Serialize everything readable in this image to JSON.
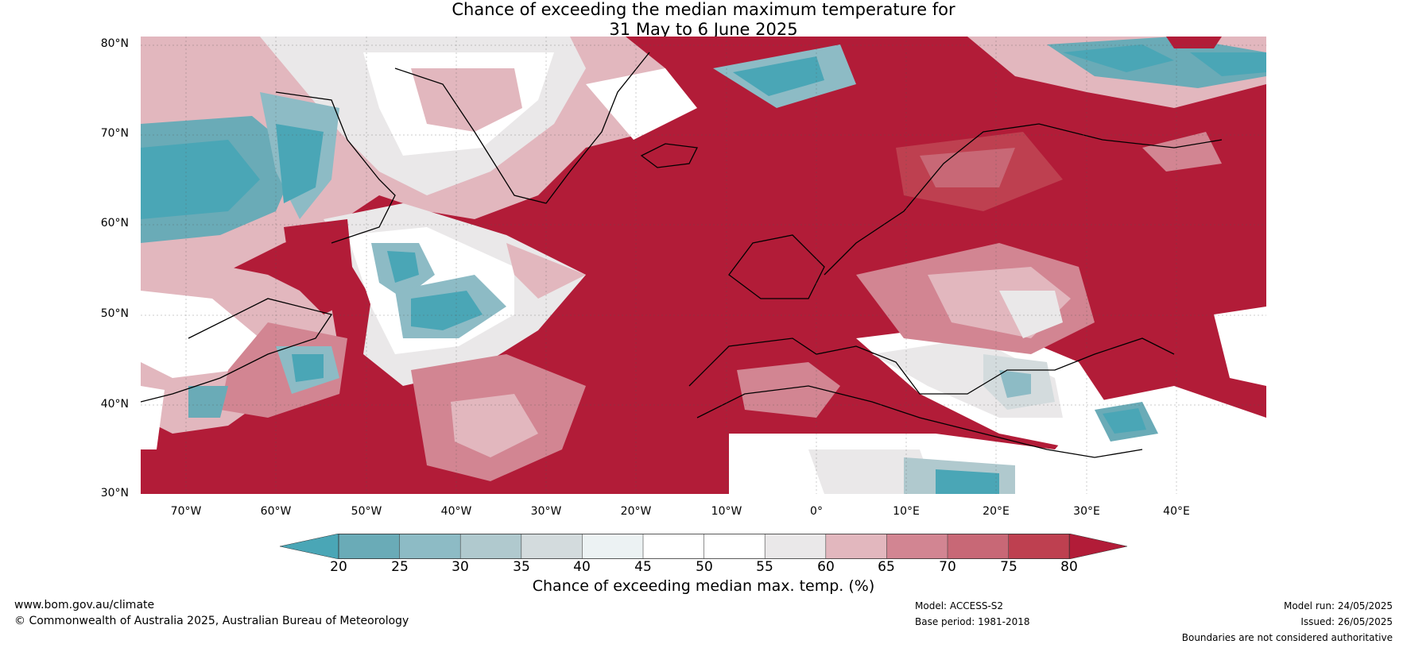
{
  "title": {
    "line1": "Chance of exceeding the median maximum temperature for",
    "line2": "31 May to 6 June 2025"
  },
  "map": {
    "latitude_labels": [
      "80°N",
      "70°N",
      "60°N",
      "50°N",
      "40°N",
      "30°N"
    ],
    "longitude_labels": [
      "70°W",
      "60°W",
      "50°W",
      "40°W",
      "30°W",
      "20°W",
      "10°W",
      "0°",
      "10°E",
      "20°E",
      "30°E",
      "40°E"
    ]
  },
  "colorbar": {
    "ticks": [
      "20",
      "25",
      "30",
      "35",
      "40",
      "45",
      "50",
      "55",
      "60",
      "65",
      "70",
      "75",
      "80"
    ],
    "colors": {
      "below_20": "#4aa6b6",
      "20_25": "#6aabb7",
      "25_30": "#8dbbc5",
      "30_35": "#b0c9ce",
      "35_40": "#d3dbdd",
      "40_45": "#ecf2f3",
      "45_50": "#ffffff",
      "50_55": "#ffffff",
      "55_60": "#eae8e9",
      "60_65": "#e2b7be",
      "65_70": "#d28592",
      "70_75": "#c86876",
      "75_80": "#be4050",
      "above_80": "#b21c38"
    },
    "label": "Chance of exceeding median max. temp. (%)"
  },
  "footer": {
    "website": "www.bom.gov.au/climate",
    "copyright": "© Commonwealth of Australia 2025, Australian Bureau of Meteorology",
    "model": "Model: ACCESS-S2",
    "base_period": "Base period: 1981-2018",
    "model_run": "Model run: 24/05/2025",
    "issued": "Issued: 26/05/2025",
    "disclaimer": "Boundaries are not considered authoritative"
  }
}
